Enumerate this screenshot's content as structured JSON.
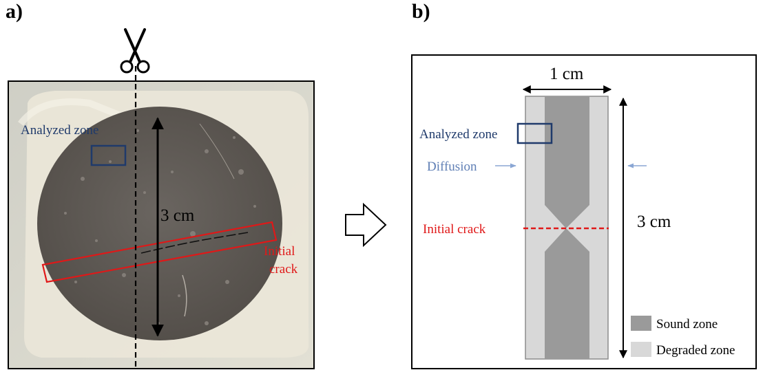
{
  "panel_a": {
    "letter": "a)",
    "analyzed_zone_label": "Analyzed zone",
    "dimension_label": "3 cm",
    "crack_label_line1": "Initial",
    "crack_label_line2": "crack",
    "scissors_icon": "scissors-icon"
  },
  "panel_b": {
    "letter": "b)",
    "width_label": "1 cm",
    "height_label": "3 cm",
    "analyzed_zone_label": "Analyzed zone",
    "diffusion_label": "Diffusion",
    "crack_label": "Initial crack",
    "legend": [
      {
        "label": "Sound zone",
        "color": "#9a9a9a"
      },
      {
        "label": "Degraded zone",
        "color": "#d8d8d8"
      }
    ]
  },
  "transition_icon": "right-arrow-icon",
  "colors": {
    "analyzed_zone": "#1f3a6b",
    "crack": "#e01818",
    "diffusion": "#7f9ccc",
    "sound_zone": "#9a9a9a",
    "degraded_zone": "#d8d8d8"
  }
}
